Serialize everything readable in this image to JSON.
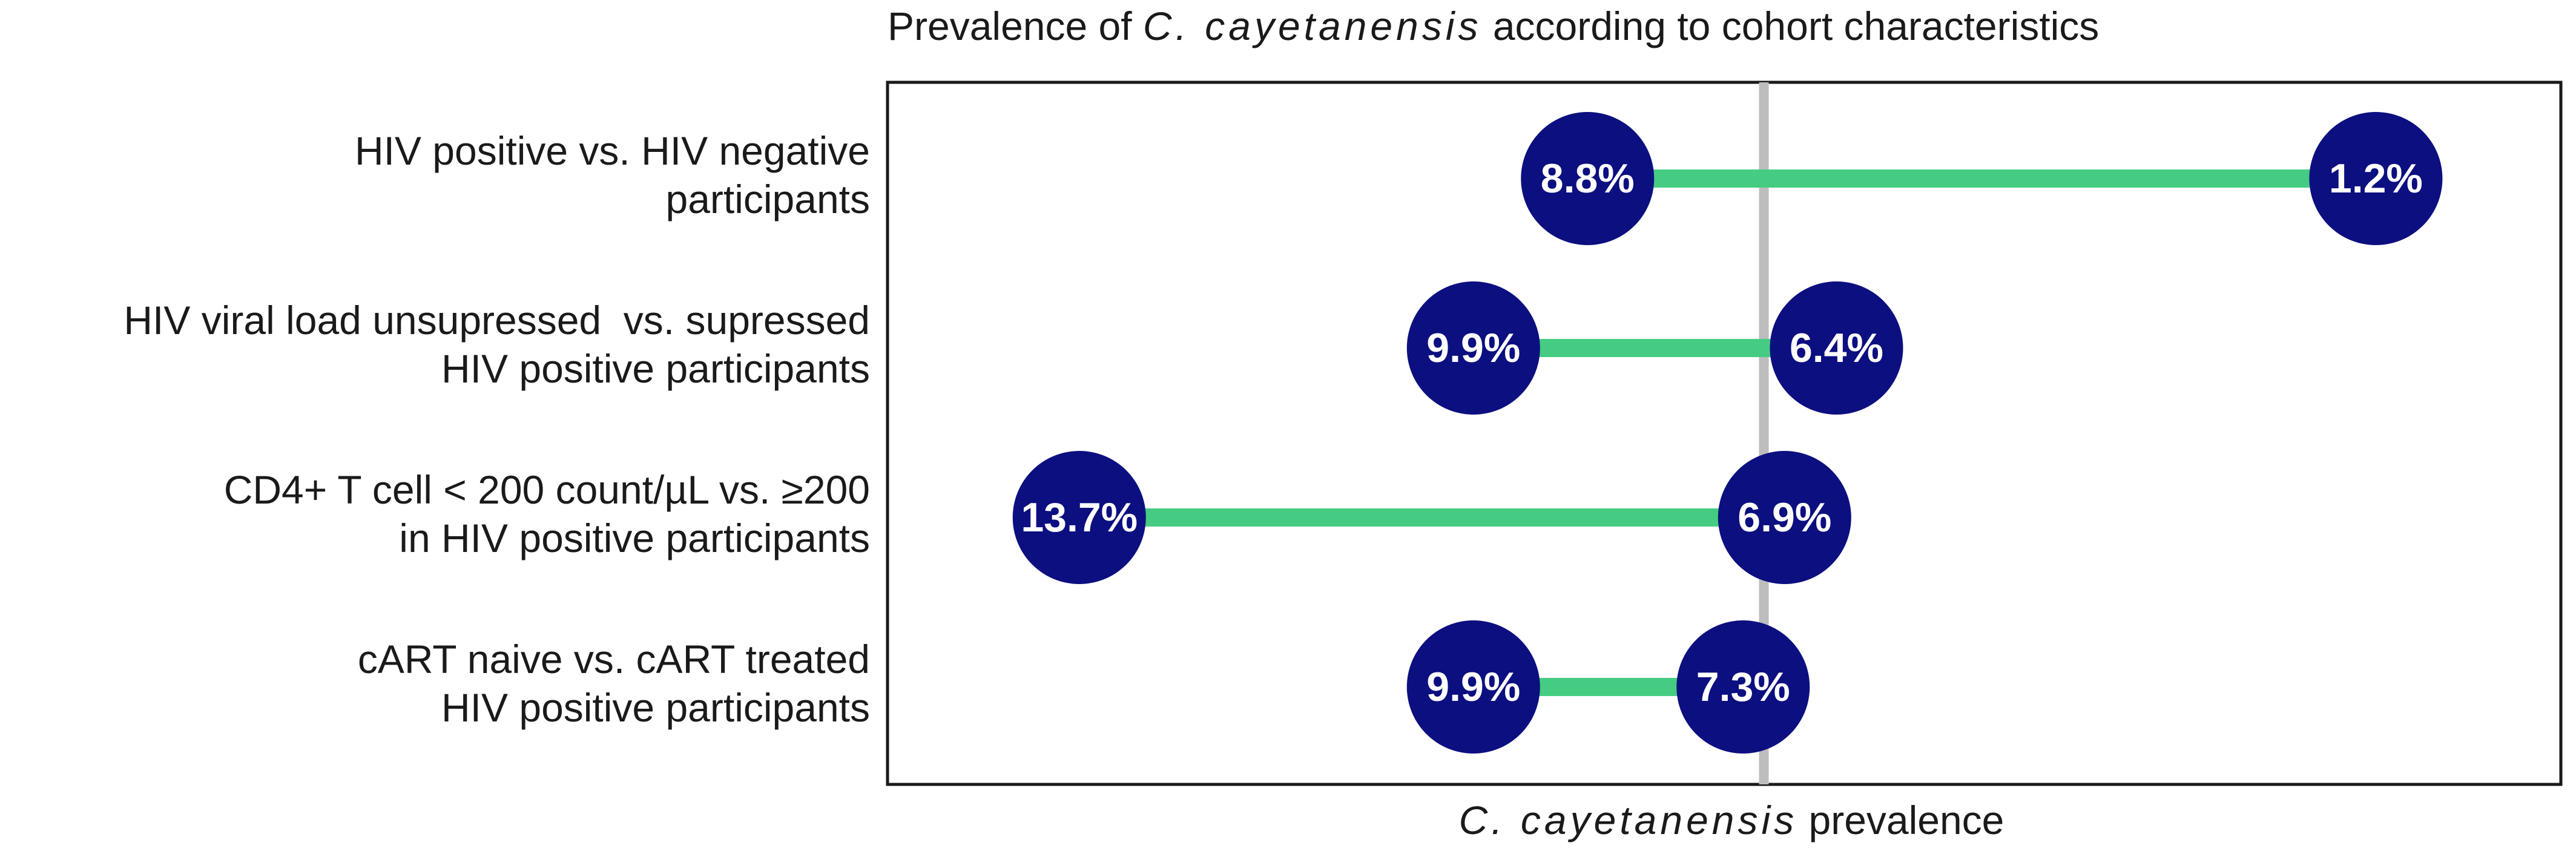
{
  "chart_data": {
    "type": "dumbbell",
    "title": {
      "prefix": "Prevalence of ",
      "organism": "C. cayetanensis",
      "suffix": " according to cohort characteristics"
    },
    "xlabel": {
      "organism": "C. cayetanensis",
      "suffix": " prevalence"
    },
    "xlim": [
      0,
      15
    ],
    "reference_line": 7.1,
    "rows": [
      {
        "label_lines": [
          "HIV positive vs. HIV negative",
          "participants"
        ],
        "left": 8.8,
        "right": 1.2,
        "left_label": "8.8%",
        "right_label": "1.2%"
      },
      {
        "label_lines": [
          "HIV viral load unsupressed  vs. supressed",
          "HIV positive participants"
        ],
        "left": 9.9,
        "right": 6.4,
        "left_label": "9.9%",
        "right_label": "6.4%"
      },
      {
        "label_lines": [
          "CD4+ T cell < 200 count/µL vs. ≥200",
          "in HIV positive participants"
        ],
        "left": 13.7,
        "right": 6.9,
        "left_label": "13.7%",
        "right_label": "6.9%"
      },
      {
        "label_lines": [
          "cART naive vs. cART treated",
          "HIV positive participants"
        ],
        "left": 9.9,
        "right": 7.3,
        "left_label": "9.9%",
        "right_label": "7.3%"
      }
    ]
  },
  "colors": {
    "dot": "#0b0f7f",
    "segment": "#45cc82",
    "reference": "#bdbdbd",
    "frame": "#1a1a1a"
  }
}
